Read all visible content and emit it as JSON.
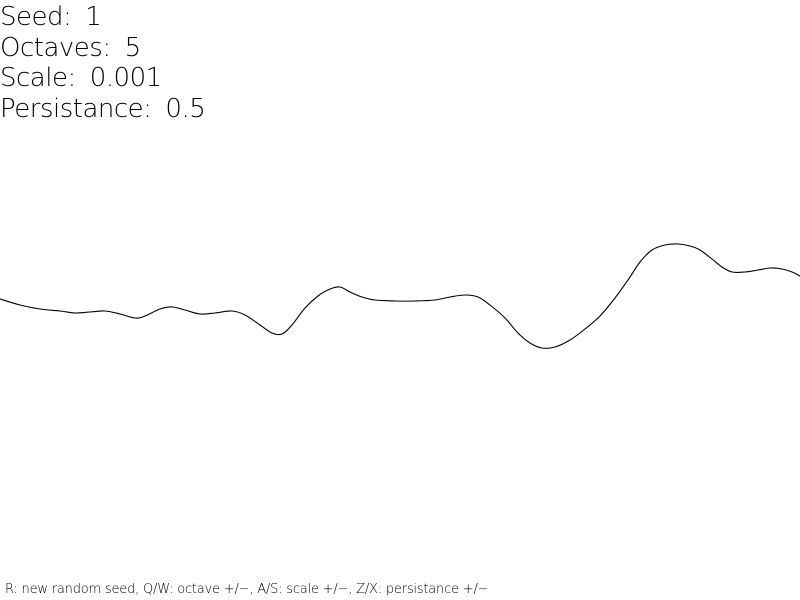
{
  "params": [
    {
      "label": "Seed:",
      "value": "1"
    },
    {
      "label": "Octaves:",
      "value": "5"
    },
    {
      "label": "Scale:",
      "value": "0.001"
    },
    {
      "label": "Persistance:",
      "value": "0.5"
    }
  ],
  "help_text": "R: new random seed, Q/W: octave +/−, A/S: scale +/−, Z/X: persistance +/−",
  "colors": {
    "background": "#ffffff",
    "line": "#000000",
    "text": "#000000"
  },
  "noise_curve": {
    "x_range": [
      0,
      800
    ],
    "y_range": [
      0,
      600
    ],
    "points": [
      [
        0,
        299
      ],
      [
        20,
        305
      ],
      [
        40,
        309
      ],
      [
        60,
        311
      ],
      [
        75,
        313
      ],
      [
        90,
        312
      ],
      [
        105,
        311
      ],
      [
        120,
        314
      ],
      [
        135,
        318
      ],
      [
        145,
        316
      ],
      [
        160,
        309
      ],
      [
        172,
        307
      ],
      [
        185,
        310
      ],
      [
        200,
        314
      ],
      [
        215,
        313
      ],
      [
        232,
        311
      ],
      [
        245,
        315
      ],
      [
        260,
        325
      ],
      [
        272,
        333
      ],
      [
        282,
        334
      ],
      [
        292,
        325
      ],
      [
        305,
        308
      ],
      [
        318,
        296
      ],
      [
        330,
        289
      ],
      [
        340,
        287
      ],
      [
        350,
        292
      ],
      [
        362,
        297
      ],
      [
        375,
        300
      ],
      [
        395,
        301
      ],
      [
        415,
        301
      ],
      [
        435,
        300
      ],
      [
        450,
        297
      ],
      [
        465,
        295
      ],
      [
        478,
        297
      ],
      [
        490,
        305
      ],
      [
        505,
        318
      ],
      [
        518,
        333
      ],
      [
        530,
        343
      ],
      [
        542,
        348
      ],
      [
        555,
        347
      ],
      [
        570,
        340
      ],
      [
        585,
        329
      ],
      [
        600,
        316
      ],
      [
        615,
        298
      ],
      [
        628,
        280
      ],
      [
        640,
        262
      ],
      [
        652,
        250
      ],
      [
        665,
        245
      ],
      [
        678,
        244
      ],
      [
        690,
        246
      ],
      [
        700,
        250
      ],
      [
        712,
        259
      ],
      [
        722,
        267
      ],
      [
        732,
        272
      ],
      [
        745,
        272
      ],
      [
        758,
        270
      ],
      [
        770,
        268
      ],
      [
        782,
        269
      ],
      [
        792,
        272
      ],
      [
        800,
        276
      ]
    ]
  }
}
